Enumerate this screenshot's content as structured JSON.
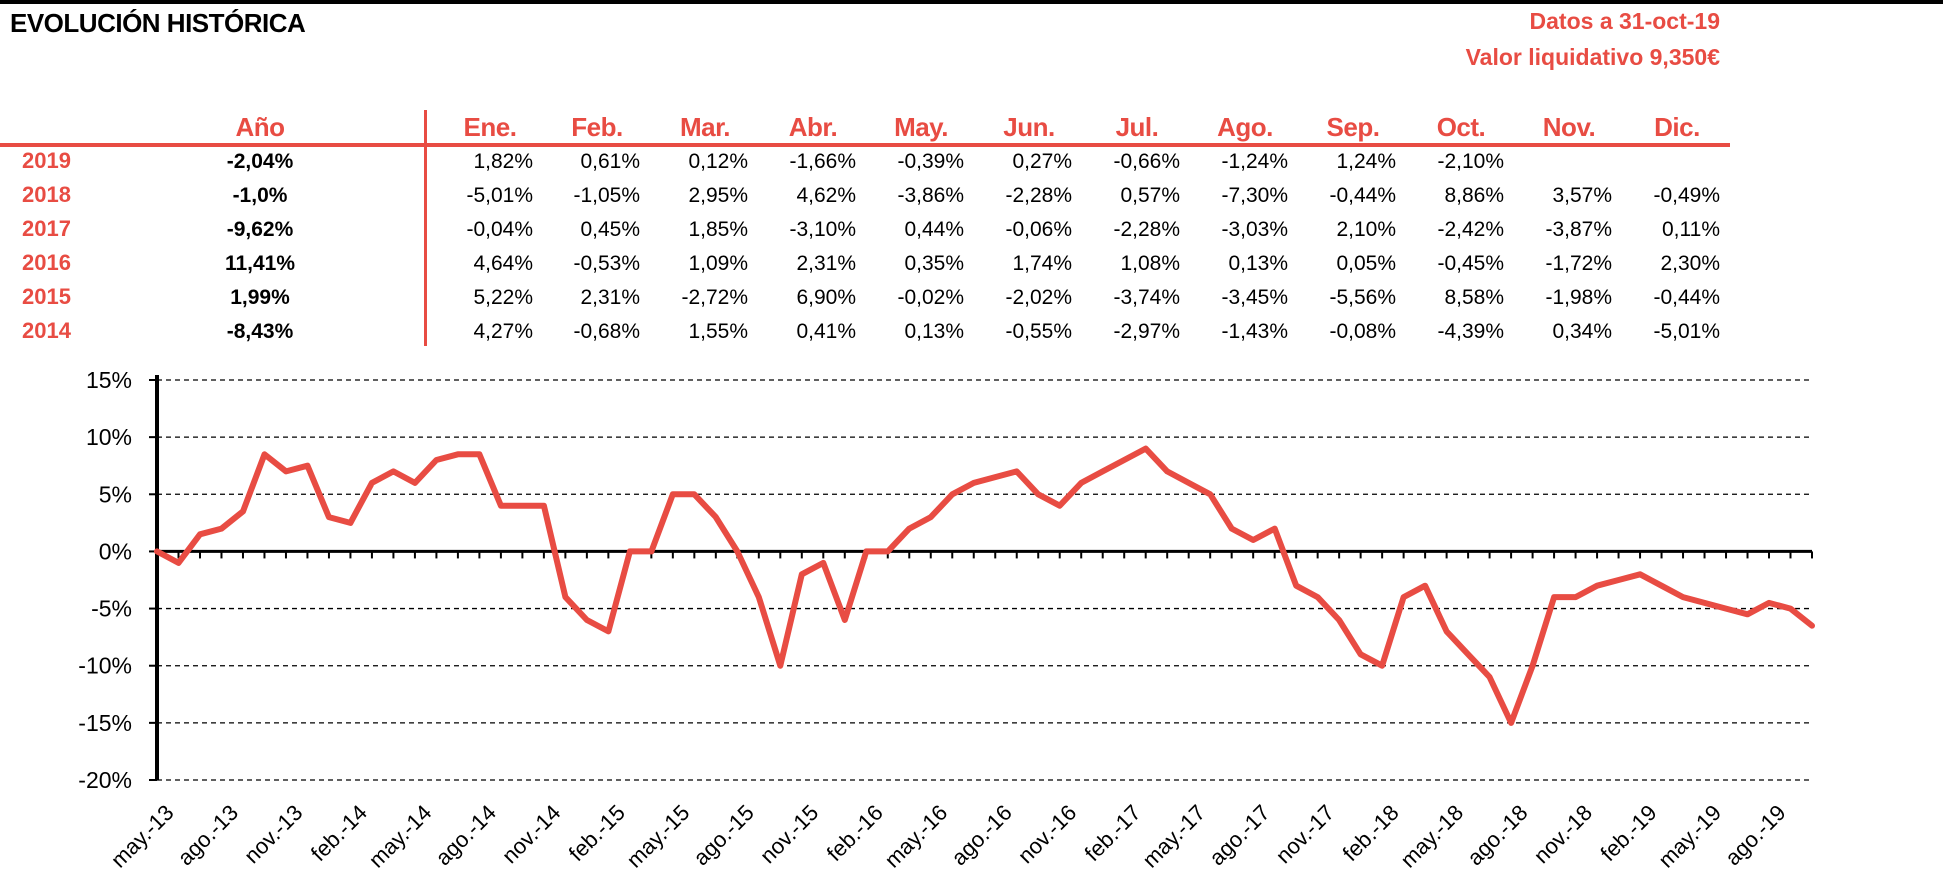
{
  "header": {
    "title": "EVOLUCIÓN HISTÓRICA",
    "date_line": "Datos a 31-oct-19",
    "nav_line": "Valor liquidativo 9,350€"
  },
  "table": {
    "year_header": "Año",
    "months": [
      "Ene.",
      "Feb.",
      "Mar.",
      "Abr.",
      "May.",
      "Jun.",
      "Jul.",
      "Ago.",
      "Sep.",
      "Oct.",
      "Nov.",
      "Dic."
    ],
    "rows": [
      {
        "year": "2019",
        "total": "-2,04%",
        "values": [
          "1,82%",
          "0,61%",
          "0,12%",
          "-1,66%",
          "-0,39%",
          "0,27%",
          "-0,66%",
          "-1,24%",
          "1,24%",
          "-2,10%",
          "",
          ""
        ]
      },
      {
        "year": "2018",
        "total": "-1,0%",
        "values": [
          "-5,01%",
          "-1,05%",
          "2,95%",
          "4,62%",
          "-3,86%",
          "-2,28%",
          "0,57%",
          "-7,30%",
          "-0,44%",
          "8,86%",
          "3,57%",
          "-0,49%"
        ]
      },
      {
        "year": "2017",
        "total": "-9,62%",
        "values": [
          "-0,04%",
          "0,45%",
          "1,85%",
          "-3,10%",
          "0,44%",
          "-0,06%",
          "-2,28%",
          "-3,03%",
          "2,10%",
          "-2,42%",
          "-3,87%",
          "0,11%"
        ]
      },
      {
        "year": "2016",
        "total": "11,41%",
        "values": [
          "4,64%",
          "-0,53%",
          "1,09%",
          "2,31%",
          "0,35%",
          "1,74%",
          "1,08%",
          "0,13%",
          "0,05%",
          "-0,45%",
          "-1,72%",
          "2,30%"
        ]
      },
      {
        "year": "2015",
        "total": "1,99%",
        "values": [
          "5,22%",
          "2,31%",
          "-2,72%",
          "6,90%",
          "-0,02%",
          "-2,02%",
          "-3,74%",
          "-3,45%",
          "-5,56%",
          "8,58%",
          "-1,98%",
          "-0,44%"
        ]
      },
      {
        "year": "2014",
        "total": "-8,43%",
        "values": [
          "4,27%",
          "-0,68%",
          "1,55%",
          "0,41%",
          "0,13%",
          "-0,55%",
          "-2,97%",
          "-1,43%",
          "-0,08%",
          "-4,39%",
          "0,34%",
          "-5,01%"
        ]
      }
    ]
  },
  "chart_data": {
    "type": "line",
    "title": "",
    "xlabel": "",
    "ylabel": "",
    "ylim": [
      -20,
      15
    ],
    "ytick_labels": [
      "15%",
      "10%",
      "5%",
      "0%",
      "-5%",
      "-10%",
      "-15%",
      "-20%"
    ],
    "ytick_values": [
      15,
      10,
      5,
      0,
      -5,
      -10,
      -15,
      -20
    ],
    "x_range": [
      "2013-05",
      "2019-10"
    ],
    "x_tick_labels": [
      "may.-13",
      "ago.-13",
      "nov.-13",
      "feb.-14",
      "may.-14",
      "ago.-14",
      "nov.-14",
      "feb.-15",
      "may.-15",
      "ago.-15",
      "nov.-15",
      "feb.-16",
      "may.-16",
      "ago.-16",
      "nov.-16",
      "feb.-17",
      "may.-17",
      "ago.-17",
      "nov.-17",
      "feb.-18",
      "may.-18",
      "ago.-18",
      "nov.-18",
      "feb.-19",
      "may.-19",
      "ago.-19"
    ],
    "grid": "horizontal dashed",
    "series_color": "#e84c43",
    "series": [
      {
        "x": [
          "2013-05",
          "2013-06",
          "2013-07",
          "2013-08",
          "2013-09",
          "2013-10",
          "2013-11",
          "2013-12",
          "2014-01",
          "2014-02",
          "2014-03",
          "2014-04",
          "2014-05",
          "2014-06",
          "2014-07",
          "2014-08",
          "2014-09",
          "2014-10",
          "2014-11",
          "2014-12",
          "2015-01",
          "2015-02",
          "2015-03",
          "2015-04",
          "2015-05",
          "2015-06",
          "2015-07",
          "2015-08",
          "2015-09",
          "2015-10",
          "2015-11",
          "2015-12",
          "2016-01",
          "2016-02",
          "2016-03",
          "2016-04",
          "2016-05",
          "2016-06",
          "2016-07",
          "2016-08",
          "2016-09",
          "2016-10",
          "2016-11",
          "2016-12",
          "2017-01",
          "2017-02",
          "2017-03",
          "2017-04",
          "2017-05",
          "2017-06",
          "2017-07",
          "2017-08",
          "2017-09",
          "2017-10",
          "2017-11",
          "2017-12",
          "2018-01",
          "2018-02",
          "2018-03",
          "2018-04",
          "2018-05",
          "2018-06",
          "2018-07",
          "2018-08",
          "2018-09",
          "2018-10",
          "2018-11",
          "2018-12",
          "2019-01",
          "2019-02",
          "2019-03",
          "2019-04",
          "2019-05",
          "2019-06",
          "2019-07",
          "2019-08",
          "2019-09",
          "2019-10"
        ],
        "values": [
          0,
          -1,
          1.5,
          2,
          3.5,
          8.5,
          7,
          7.5,
          3,
          2.5,
          6,
          7,
          6,
          8,
          8.5,
          8.5,
          4,
          4,
          4,
          -4,
          -6,
          -7,
          0,
          0,
          5,
          5,
          3,
          0,
          -4,
          -10,
          -2,
          -1,
          -6,
          0,
          0,
          2,
          3,
          5,
          6,
          6.5,
          7,
          5,
          4,
          6,
          7,
          8,
          9,
          7,
          6,
          5,
          2,
          1,
          2,
          -3,
          -4,
          -6,
          -9,
          -10,
          -4,
          -3,
          -7,
          -9,
          -11,
          -15,
          -10,
          -4,
          -4,
          -3,
          -2.5,
          -2,
          -3,
          -4,
          -4.5,
          -5,
          -5.5,
          -4.5,
          -5,
          -6.5
        ]
      }
    ]
  }
}
